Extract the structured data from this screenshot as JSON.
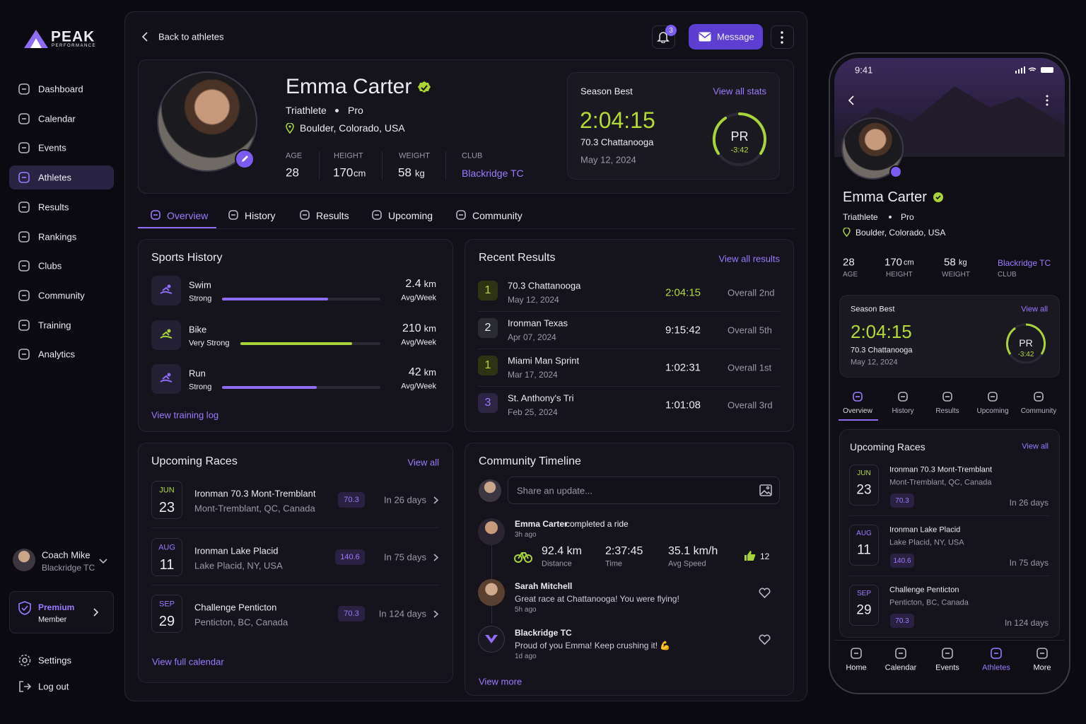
{
  "brand": {
    "name": "PEAK",
    "tagline": "PERFORMANCE"
  },
  "sidebar": {
    "nav": [
      "Dashboard",
      "Calendar",
      "Events",
      "Athletes",
      "Results",
      "Rankings",
      "Clubs",
      "Community",
      "Training",
      "Analytics"
    ],
    "user": {
      "name": "Coach Mike",
      "club": "Blackridge TC"
    },
    "premium": {
      "title": "Premium",
      "subtitle": "Member"
    },
    "settings": "Settings",
    "logout": "Log out"
  },
  "topbar": {
    "back": "Back to athletes",
    "notifications": 3,
    "message": "Message"
  },
  "profile": {
    "name": "Emma Carter",
    "discipline": "Triathlete",
    "level": "Pro",
    "location": "Boulder, Colorado, USA",
    "age": {
      "label": "AGE",
      "value": 28
    },
    "height": {
      "label": "HEIGHT",
      "value": 170,
      "unit": "cm"
    },
    "weight": {
      "label": "WEIGHT",
      "value": 58,
      "unit": "kg"
    },
    "club": {
      "label": "CLUB",
      "value": "Blackridge TC"
    }
  },
  "season_best": {
    "title": "Season Best",
    "link": "View all stats",
    "time": "2:04:15",
    "race": "70.3 Chattanooga",
    "date": "May 12, 2024",
    "pr": "PR",
    "pr_delta": "-3:42"
  },
  "tabs": [
    "Overview",
    "History",
    "Results",
    "Upcoming",
    "Community"
  ],
  "sports_history": {
    "title": "Sports History",
    "link": "View training log",
    "items": [
      {
        "sport": "Swim",
        "level": "Strong",
        "value": 2.4,
        "unit": "km",
        "period": "Avg/Week"
      },
      {
        "sport": "Bike",
        "level": "Very Strong",
        "value": 210,
        "unit": "km",
        "period": "Avg/Week"
      },
      {
        "sport": "Run",
        "level": "Strong",
        "value": 42,
        "unit": "km",
        "period": "Avg/Week"
      }
    ]
  },
  "recent_results": {
    "title": "Recent Results",
    "link": "View all results",
    "rows": [
      {
        "place": 1,
        "race": "70.3 Chattanooga",
        "date": "May 12, 2024",
        "time": "2:04:15",
        "overall": "Overall 2nd"
      },
      {
        "place": 2,
        "race": "Ironman Texas",
        "date": "Apr 07, 2024",
        "time": "9:15:42",
        "overall": "Overall 5th"
      },
      {
        "place": 1,
        "race": "Miami Man Sprint",
        "date": "Mar 17, 2024",
        "time": "1:02:31",
        "overall": "Overall 1st"
      },
      {
        "place": 3,
        "race": "St. Anthony's Tri",
        "date": "Feb 25, 2024",
        "time": "1:01:08",
        "overall": "Overall 3rd"
      }
    ]
  },
  "upcoming_races": {
    "title": "Upcoming Races",
    "link": "View all",
    "footer": "View full calendar",
    "races": [
      {
        "month": "JUN",
        "day": 23,
        "name": "Ironman 70.3 Mont-Tremblant",
        "location": "Mont-Tremblant, QC, Canada",
        "distance": "70.3",
        "countdown": "In 26 days"
      },
      {
        "month": "AUG",
        "day": 11,
        "name": "Ironman Lake Placid",
        "location": "Lake Placid, NY, USA",
        "distance": "140.6",
        "countdown": "In 75 days"
      },
      {
        "month": "SEP",
        "day": 29,
        "name": "Challenge Penticton",
        "location": "Penticton, BC, Canada",
        "distance": "70.3",
        "countdown": "In 124 days"
      }
    ]
  },
  "community": {
    "title": "Community Timeline",
    "placeholder": "Share an update...",
    "more": "View more",
    "activity": {
      "author": "Emma Carter",
      "action": "completed a ride",
      "time": "3h ago",
      "distance": "92.4 km",
      "distance_label": "Distance",
      "duration": "2:37:45",
      "duration_label": "Time",
      "speed": "35.1 km/h",
      "speed_label": "Avg Speed",
      "likes": 12
    },
    "posts": [
      {
        "author": "Sarah Mitchell",
        "text": "Great race at Chattanooga! You were flying!",
        "time": "5h ago"
      },
      {
        "author": "Blackridge TC",
        "text": "Proud of you Emma! Keep crushing it! 💪",
        "time": "1d ago"
      }
    ]
  },
  "mobile": {
    "clock": "9:41",
    "season_best_link": "View all",
    "upcoming_link": "View all",
    "upcoming_location": "Mont-Tremblant, QC, Canada",
    "nav": [
      "Home",
      "Calendar",
      "Events",
      "Athletes",
      "More"
    ]
  }
}
